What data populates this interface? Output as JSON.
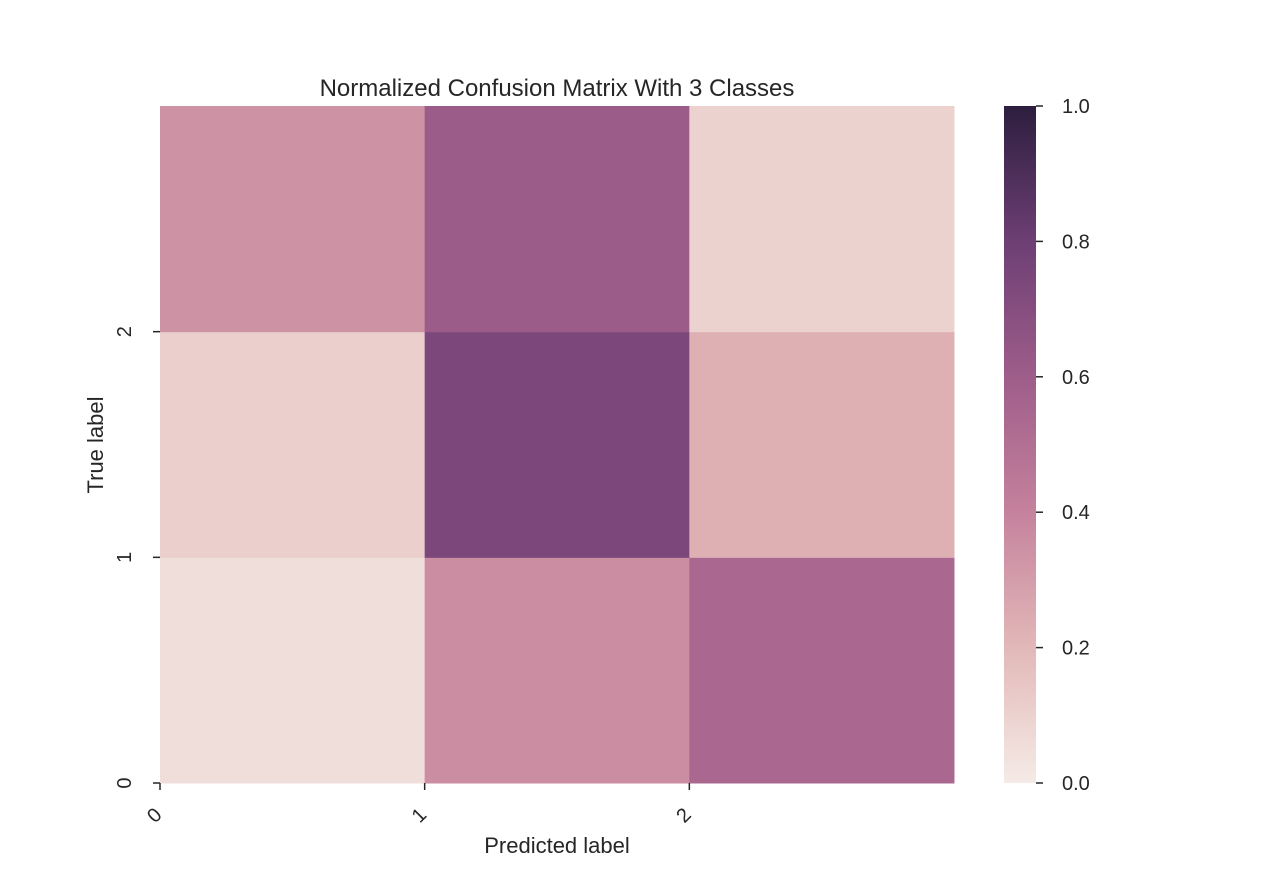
{
  "chart_data": {
    "type": "heatmap",
    "title": "Normalized Confusion Matrix With 3 Classes",
    "xlabel": "Predicted label",
    "ylabel": "True label",
    "x_categories": [
      "0",
      "1",
      "2"
    ],
    "y_categories": [
      "0",
      "1",
      "2"
    ],
    "values": [
      [
        0.05,
        0.36,
        0.54
      ],
      [
        0.11,
        0.74,
        0.23
      ],
      [
        0.34,
        0.61,
        0.1
      ]
    ],
    "colorbar": {
      "min": 0.0,
      "max": 1.0,
      "ticks": [
        0.0,
        0.2,
        0.4,
        0.6,
        0.8,
        1.0
      ],
      "tick_labels": [
        "0.0",
        "0.2",
        "0.4",
        "0.6",
        "0.8",
        "1.0"
      ],
      "colors": [
        "#f5ebe6",
        "#e2b8b8",
        "#c5829d",
        "#9e5d8a",
        "#6d3f74",
        "#2d1e3e"
      ]
    },
    "grid": false,
    "legend": "colorbar-right"
  }
}
